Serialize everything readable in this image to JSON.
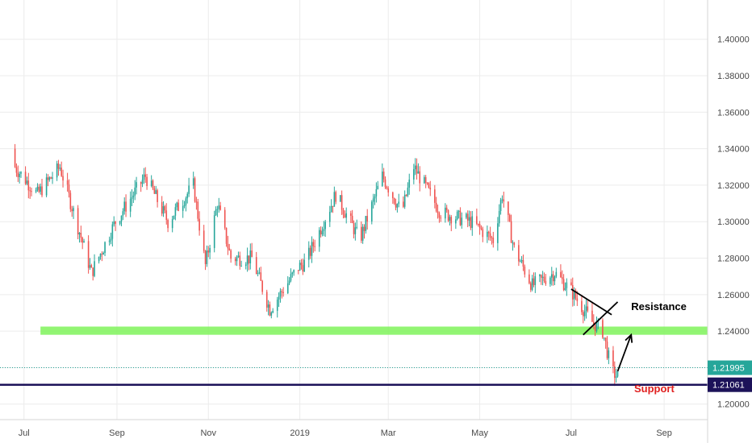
{
  "colors": {
    "background": "#ffffff",
    "grid": "#ececec",
    "candle_up": "#26a69a",
    "candle_down": "#ef5350",
    "green_zone": "#7ff35a",
    "support_line": "#1c1259",
    "current_price": "#26a69a",
    "trend_lines": "#000000",
    "support_text": "#e02020",
    "axis_text": "#4a4a4a"
  },
  "chart_data": {
    "type": "candlestick",
    "title": "",
    "xlabel": "",
    "ylabel": "",
    "ylim": [
      1.1915,
      1.4215
    ],
    "grid": true,
    "x_tick_labels": [
      "Jul",
      "Sep",
      "Nov",
      "2019",
      "Mar",
      "May",
      "Jul",
      "Sep"
    ],
    "y_tick_labels": [
      "1.40000",
      "1.38000",
      "1.36000",
      "1.34000",
      "1.32000",
      "1.30000",
      "1.28000",
      "1.26000",
      "1.24000",
      "1.20000"
    ],
    "y_tick_values": [
      1.4,
      1.38,
      1.36,
      1.34,
      1.32,
      1.3,
      1.28,
      1.26,
      1.24,
      1.2
    ],
    "close_path": [
      {
        "date": "2018-06-25",
        "close": 1.33
      },
      {
        "date": "2018-07-10",
        "close": 1.315
      },
      {
        "date": "2018-07-25",
        "close": 1.33
      },
      {
        "date": "2018-08-05",
        "close": 1.3
      },
      {
        "date": "2018-08-15",
        "close": 1.272
      },
      {
        "date": "2018-08-31",
        "close": 1.3
      },
      {
        "date": "2018-09-20",
        "close": 1.325
      },
      {
        "date": "2018-10-05",
        "close": 1.3
      },
      {
        "date": "2018-10-22",
        "close": 1.32
      },
      {
        "date": "2018-10-30",
        "close": 1.276
      },
      {
        "date": "2018-11-07",
        "close": 1.31
      },
      {
        "date": "2018-11-16",
        "close": 1.28
      },
      {
        "date": "2018-11-30",
        "close": 1.28
      },
      {
        "date": "2018-12-12",
        "close": 1.252
      },
      {
        "date": "2018-12-31",
        "close": 1.275
      },
      {
        "date": "2019-01-05",
        "close": 1.278
      },
      {
        "date": "2019-01-25",
        "close": 1.315
      },
      {
        "date": "2019-02-10",
        "close": 1.29
      },
      {
        "date": "2019-02-25",
        "close": 1.325
      },
      {
        "date": "2019-03-10",
        "close": 1.305
      },
      {
        "date": "2019-03-18",
        "close": 1.33
      },
      {
        "date": "2019-04-05",
        "close": 1.305
      },
      {
        "date": "2019-04-25",
        "close": 1.3
      },
      {
        "date": "2019-05-10",
        "close": 1.29
      },
      {
        "date": "2019-05-16",
        "close": 1.315
      },
      {
        "date": "2019-05-24",
        "close": 1.285
      },
      {
        "date": "2019-06-05",
        "close": 1.265
      },
      {
        "date": "2019-06-20",
        "close": 1.272
      },
      {
        "date": "2019-07-01",
        "close": 1.262
      },
      {
        "date": "2019-07-15",
        "close": 1.245
      },
      {
        "date": "2019-07-22",
        "close": 1.24
      },
      {
        "date": "2019-07-28",
        "close": 1.218
      },
      {
        "date": "2019-08-01",
        "close": 1.215
      }
    ],
    "horizontal_zones": [
      {
        "type": "zone",
        "from": 1.238,
        "to": 1.2425,
        "start_date": "2018-07-12"
      }
    ],
    "horizontal_lines": [
      {
        "value": 1.21995,
        "style": "dotted",
        "label": "1.21995"
      },
      {
        "value": 1.21061,
        "style": "solid",
        "label": "1.21061"
      }
    ],
    "trend_lines": [
      {
        "from": {
          "date": "2019-07-01",
          "value": 1.263
        },
        "to": {
          "date": "2019-07-28",
          "value": 1.249
        }
      },
      {
        "from": {
          "date": "2019-07-09",
          "value": 1.238
        },
        "to": {
          "date": "2019-08-01",
          "value": 1.256
        }
      }
    ],
    "annotations": [
      {
        "id": "resistance",
        "text": "Resistance",
        "date": "2019-08-10",
        "value": 1.2515
      },
      {
        "id": "support",
        "text": "Support",
        "date": "2019-08-12",
        "value": 1.2065
      }
    ],
    "arrow": {
      "from": {
        "date": "2019-08-01",
        "value": 1.218
      },
      "to": {
        "date": "2019-08-10",
        "value": 1.238
      }
    }
  }
}
